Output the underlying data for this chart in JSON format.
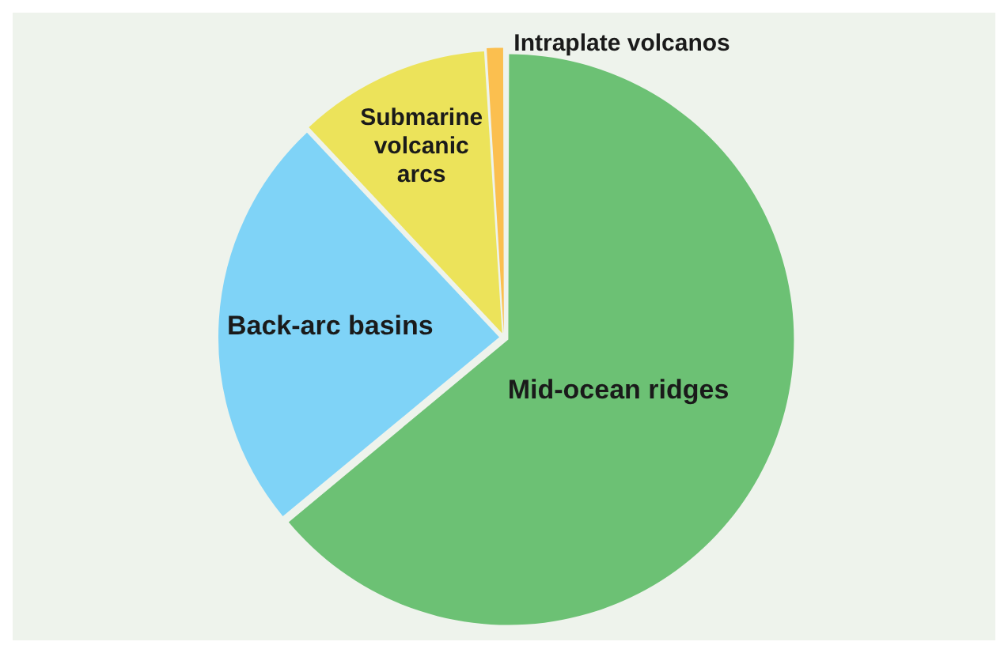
{
  "chart_data": {
    "type": "pie",
    "categories": [
      "Mid-ocean ridges",
      "Back-arc basins",
      "Submarine volcanic arcs",
      "Intraplate volcanos"
    ],
    "values": [
      64,
      24,
      11,
      1
    ],
    "colors": [
      "#6cc174",
      "#7fd3f7",
      "#ece35a",
      "#fbbf4f"
    ],
    "legend": false
  }
}
